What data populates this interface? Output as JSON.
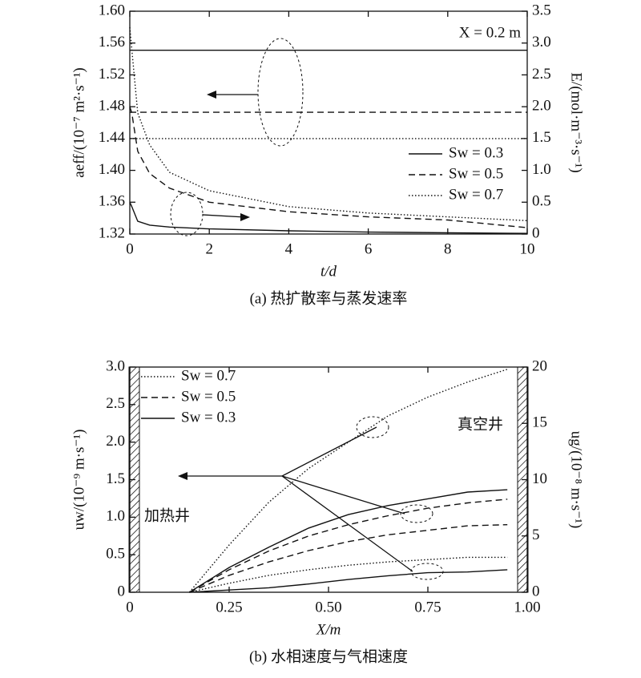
{
  "chart_data": [
    {
      "type": "line",
      "x_label": "t/d",
      "y_label": "aeff/(10⁻⁷ m²·s⁻¹)",
      "y2_label": "E/(mol·m⁻³·s⁻¹)",
      "caption": "(a) 热扩散率与蒸发速率",
      "annotation": "X = 0.2 m",
      "xlim": [
        0,
        10
      ],
      "xticks": [
        0,
        2,
        4,
        6,
        8,
        10
      ],
      "ylim": [
        1.32,
        1.6
      ],
      "yticks": [
        1.32,
        1.36,
        {
          "value": 1.4,
          "label": "1.40"
        },
        1.44,
        1.48,
        1.52,
        1.56,
        {
          "value": 1.6,
          "label": "1.60"
        }
      ],
      "y2lim": [
        0,
        3.5
      ],
      "y2ticks": [
        0,
        0.5,
        {
          "value": 1,
          "label": "1.0"
        },
        1.5,
        {
          "value": 2,
          "label": "2.0"
        },
        2.5,
        {
          "value": 3,
          "label": "3.0"
        },
        3.5
      ],
      "grid": false,
      "legend": "lower-right",
      "x": [
        0,
        0.05,
        0.2,
        0.5,
        1,
        2,
        4,
        6,
        8,
        10
      ],
      "series": [
        {
          "name": "Sw = 0.3",
          "color": "#111111",
          "dash": "solid",
          "values": [
            1.551,
            1.551,
            1.551,
            1.551,
            1.551,
            1.551,
            1.551,
            1.551,
            1.551,
            1.551
          ]
        },
        {
          "name": "Sw = 0.5",
          "color": "#111111",
          "dash": "dashed",
          "values": [
            1.473,
            1.473,
            1.473,
            1.473,
            1.473,
            1.473,
            1.473,
            1.473,
            1.473,
            1.473
          ]
        },
        {
          "name": "Sw = 0.7",
          "color": "#111111",
          "dash": "dotted",
          "values": [
            1.44,
            1.44,
            1.44,
            1.44,
            1.44,
            1.44,
            1.44,
            1.44,
            1.44,
            1.44
          ]
        },
        {
          "axis": "y2",
          "color": "#111111",
          "dash": "solid",
          "values": [
            0.5,
            0.43,
            0.2,
            0.14,
            0.11,
            0.08,
            0.05,
            0.03,
            0.02,
            0.01
          ]
        },
        {
          "axis": "y2",
          "color": "#111111",
          "dash": "dashed",
          "values": [
            2.0,
            1.9,
            1.3,
            0.95,
            0.72,
            0.5,
            0.35,
            0.27,
            0.22,
            0.1
          ]
        },
        {
          "axis": "y2",
          "color": "#111111",
          "dash": "dotted",
          "values": [
            3.25,
            2.9,
            1.9,
            1.4,
            0.97,
            0.68,
            0.43,
            0.33,
            0.27,
            0.21
          ]
        }
      ]
    },
    {
      "type": "line",
      "x_label": "X/m",
      "y_label": "uw/(10⁻⁹ m·s⁻¹)",
      "y2_label": "ug/(10⁻⁸ m·s⁻¹)",
      "caption": "(b) 水相速度与气相速度",
      "annotations": [
        "加热井",
        "真空井"
      ],
      "xlim": [
        0,
        1
      ],
      "xticks": [
        0,
        0.25,
        {
          "value": 0.5,
          "label": "0.50"
        },
        0.75,
        {
          "value": 1,
          "label": "1.00"
        }
      ],
      "ylim": [
        0,
        3
      ],
      "yticks": [
        0,
        0.5,
        {
          "value": 1,
          "label": "1.0"
        },
        1.5,
        {
          "value": 2,
          "label": "2.0"
        },
        2.5,
        {
          "value": 3,
          "label": "3.0"
        }
      ],
      "y2lim": [
        0,
        20
      ],
      "y2ticks": [
        0,
        5,
        10,
        15,
        20
      ],
      "grid": false,
      "legend": "upper-left",
      "x": [
        0.15,
        0.25,
        0.35,
        0.45,
        0.55,
        0.65,
        0.75,
        0.85,
        0.95
      ],
      "series": [
        {
          "name": "Sw = 0.7",
          "color": "#111111",
          "dash": "dotted",
          "values": [
            0,
            0.63,
            1.2,
            1.65,
            2.0,
            2.35,
            2.6,
            2.8,
            2.97
          ]
        },
        {
          "name": "Sw = 0.5",
          "color": "#111111",
          "dash": "dashed",
          "values": [
            0,
            0.3,
            0.55,
            0.75,
            0.9,
            1.02,
            1.12,
            1.19,
            1.24
          ]
        },
        {
          "name": "Sw = 0.3",
          "color": "#111111",
          "dash": "solid",
          "values": [
            0,
            0.03,
            0.06,
            0.11,
            0.17,
            0.22,
            0.26,
            0.27,
            0.3
          ]
        },
        {
          "axis": "y2",
          "color": "#111111",
          "dash": "solid",
          "values": [
            0,
            2.2,
            4.0,
            5.7,
            6.9,
            7.7,
            8.3,
            8.9,
            9.1
          ]
        },
        {
          "axis": "y2",
          "color": "#111111",
          "dash": "dashed",
          "values": [
            0,
            1.5,
            2.7,
            3.7,
            4.5,
            5.1,
            5.5,
            5.9,
            6.0
          ]
        },
        {
          "axis": "y2",
          "color": "#111111",
          "dash": "dotted",
          "values": [
            0,
            0.8,
            1.5,
            2.0,
            2.4,
            2.7,
            2.9,
            3.1,
            3.1
          ]
        }
      ]
    }
  ]
}
